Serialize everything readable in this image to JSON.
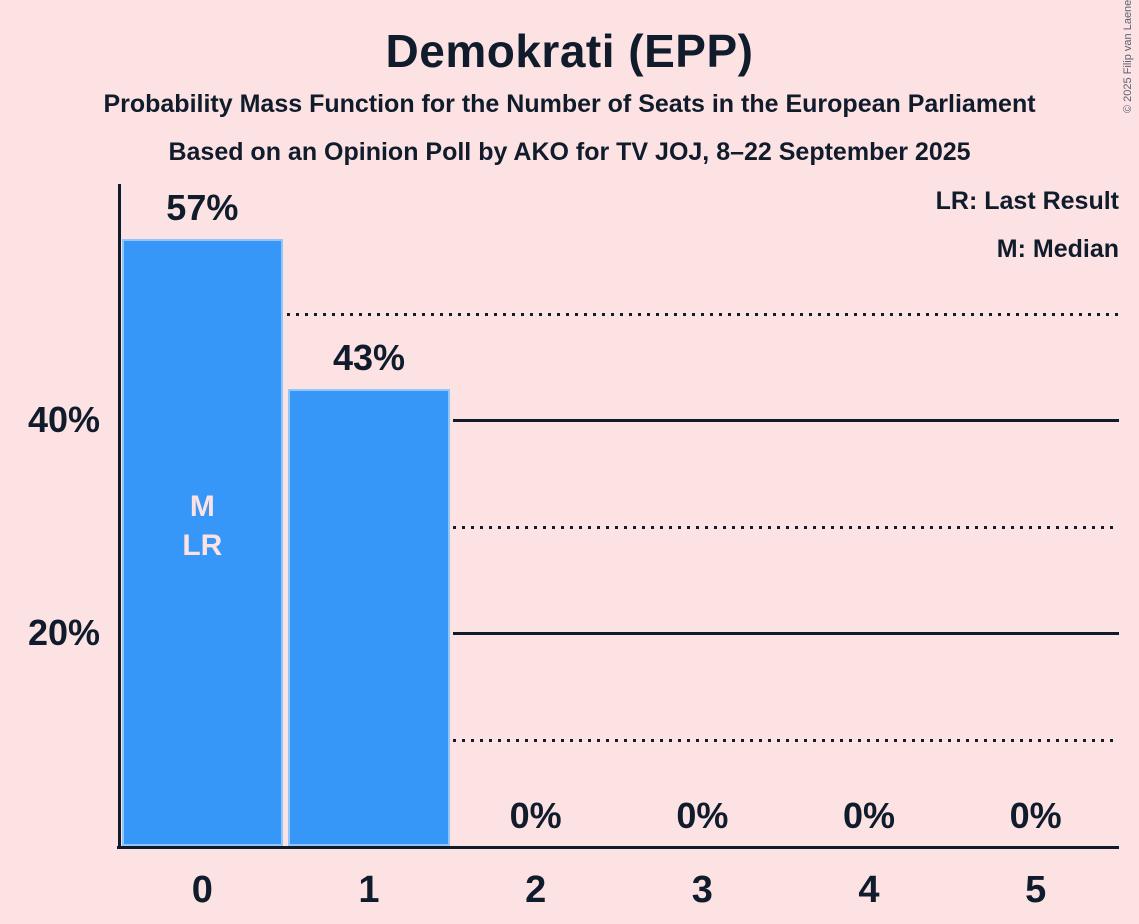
{
  "title": "Demokrati (EPP)",
  "subtitle1": "Probability Mass Function for the Number of Seats in the European Parliament",
  "subtitle2": "Based on an Opinion Poll by AKO for TV JOJ, 8–22 September 2025",
  "copyright": "© 2025 Filip van Laenen",
  "legend": {
    "lr": "LR: Last Result",
    "m": "M: Median"
  },
  "colors": {
    "background": "#FDE2E3",
    "bar": "#3797F8",
    "text": "#101C2C",
    "bar_inner_label": "#FDE2E3",
    "copyright": "#5C6370"
  },
  "chart_data": {
    "type": "bar",
    "title": "Demokrati (EPP)",
    "categories": [
      "0",
      "1",
      "2",
      "3",
      "4",
      "5"
    ],
    "values": [
      57,
      43,
      0,
      0,
      0,
      0
    ],
    "value_labels": [
      "57%",
      "43%",
      "0%",
      "0%",
      "0%",
      "0%"
    ],
    "xlabel": "",
    "ylabel": "",
    "ylim": [
      0,
      62
    ],
    "grid": "horizontal",
    "legend_position": "top-right",
    "gridlines": [
      {
        "pct": 50,
        "style": "dotted",
        "label": ""
      },
      {
        "pct": 40,
        "style": "solid",
        "label": "40%"
      },
      {
        "pct": 30,
        "style": "dotted",
        "label": ""
      },
      {
        "pct": 20,
        "style": "solid",
        "label": "20%"
      },
      {
        "pct": 10,
        "style": "dotted",
        "label": ""
      }
    ],
    "annotations": [
      {
        "category": "0",
        "lines": [
          "M",
          "LR"
        ]
      }
    ]
  }
}
